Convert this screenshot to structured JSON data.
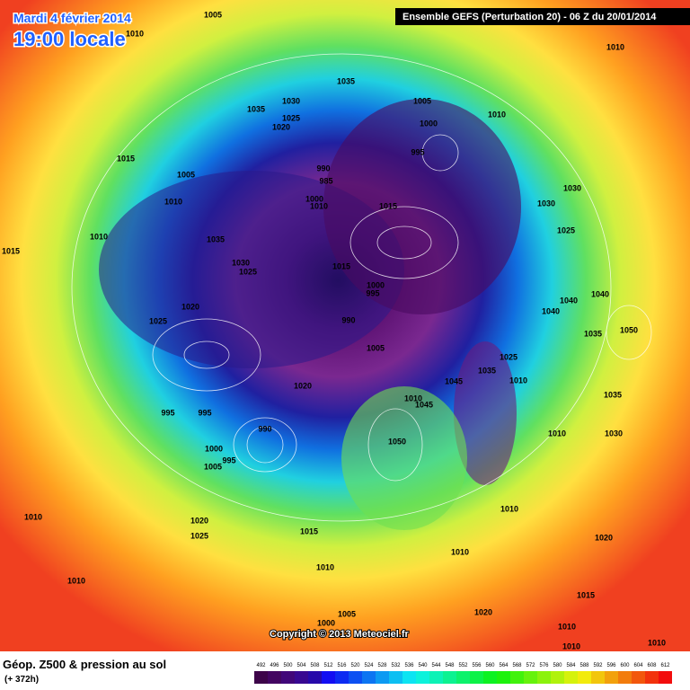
{
  "header": {
    "date": "Mardi 4 février 2014",
    "time": "19:00 locale",
    "model": "Ensemble GEFS (Perturbation 20)  -  06 Z du 20/01/2014"
  },
  "footer": {
    "title": "Géop. Z500 & pression au sol",
    "lead": "(+ 372h)",
    "copyright": "Copyright © 2013 Meteociel.fr"
  },
  "legend": {
    "ticks": [
      492,
      496,
      500,
      504,
      508,
      512,
      516,
      520,
      524,
      528,
      532,
      536,
      540,
      544,
      548,
      552,
      556,
      560,
      564,
      568,
      572,
      576,
      580,
      584,
      588,
      592,
      596,
      600,
      604,
      608,
      612
    ]
  },
  "isobar_labels": [
    1005,
    1010,
    1035,
    1030,
    1035,
    1025,
    1020,
    1005,
    1010,
    1000,
    1010,
    1015,
    1005,
    990,
    985,
    1010,
    1000,
    1010,
    995,
    1030,
    1015,
    1030,
    1010,
    1035,
    1025,
    1015,
    1030,
    1025,
    1015,
    1000,
    995,
    1040,
    1040,
    1040,
    1020,
    990,
    1025,
    1035,
    1050,
    1005,
    1025,
    1035,
    1010,
    1045,
    1020,
    1035,
    1010,
    1045,
    995,
    995,
    990,
    1010,
    1030,
    1050,
    1000,
    1005,
    995,
    1010,
    1010,
    1020,
    1025,
    1015,
    1020,
    1010,
    1010,
    1010,
    1015,
    1005,
    1020,
    1000,
    1010,
    1010,
    1010
  ]
}
